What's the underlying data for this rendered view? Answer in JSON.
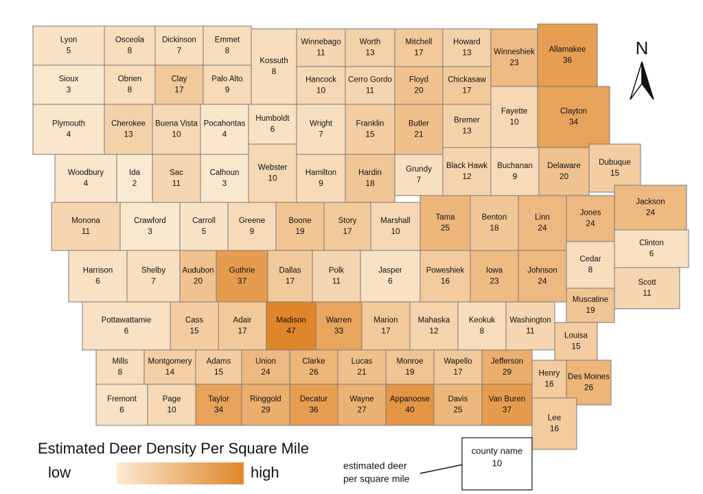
{
  "map": {
    "counties": [
      {
        "name": "Lyon",
        "value": 5
      },
      {
        "name": "Osceola",
        "value": 8
      },
      {
        "name": "Dickinson",
        "value": 7
      },
      {
        "name": "Emmet",
        "value": 8
      },
      {
        "name": "Kossuth",
        "value": 8
      },
      {
        "name": "Winnebago",
        "value": 11
      },
      {
        "name": "Worth",
        "value": 13
      },
      {
        "name": "Mitchell",
        "value": 17
      },
      {
        "name": "Howard",
        "value": 13
      },
      {
        "name": "Winneshiek",
        "value": 23
      },
      {
        "name": "Allamakee",
        "value": 36
      },
      {
        "name": "Sioux",
        "value": 3
      },
      {
        "name": "Obrien",
        "value": 8
      },
      {
        "name": "Clay",
        "value": 17
      },
      {
        "name": "Palo Alto",
        "value": 9
      },
      {
        "name": "Hancock",
        "value": 10
      },
      {
        "name": "Cerro Gordo",
        "value": 11
      },
      {
        "name": "Floyd",
        "value": 20
      },
      {
        "name": "Chickasaw",
        "value": 17
      },
      {
        "name": "Fayette",
        "value": 10
      },
      {
        "name": "Clayton",
        "value": 34
      },
      {
        "name": "Plymouth",
        "value": 4
      },
      {
        "name": "Cherokee",
        "value": 13
      },
      {
        "name": "Buena Vista",
        "value": 10
      },
      {
        "name": "Pocahontas",
        "value": 4
      },
      {
        "name": "Humboldt",
        "value": 6
      },
      {
        "name": "Wright",
        "value": 7
      },
      {
        "name": "Franklin",
        "value": 15
      },
      {
        "name": "Butler",
        "value": 21
      },
      {
        "name": "Bremer",
        "value": 13
      },
      {
        "name": "Woodbury",
        "value": 4
      },
      {
        "name": "Ida",
        "value": 2
      },
      {
        "name": "Sac",
        "value": 11
      },
      {
        "name": "Calhoun",
        "value": 3
      },
      {
        "name": "Webster",
        "value": 10
      },
      {
        "name": "Hamilton",
        "value": 9
      },
      {
        "name": "Hardin",
        "value": 18
      },
      {
        "name": "Grundy",
        "value": 7
      },
      {
        "name": "Black Hawk",
        "value": 12
      },
      {
        "name": "Buchanan",
        "value": 9
      },
      {
        "name": "Delaware",
        "value": 20
      },
      {
        "name": "Dubuque",
        "value": 15
      },
      {
        "name": "Monona",
        "value": 11
      },
      {
        "name": "Crawford",
        "value": 3
      },
      {
        "name": "Carroll",
        "value": 5
      },
      {
        "name": "Greene",
        "value": 9
      },
      {
        "name": "Boone",
        "value": 19
      },
      {
        "name": "Story",
        "value": 17
      },
      {
        "name": "Marshall",
        "value": 10
      },
      {
        "name": "Tama",
        "value": 25
      },
      {
        "name": "Benton",
        "value": 18
      },
      {
        "name": "Linn",
        "value": 24
      },
      {
        "name": "Jones",
        "value": 24
      },
      {
        "name": "Jackson",
        "value": 24
      },
      {
        "name": "Harrison",
        "value": 6
      },
      {
        "name": "Shelby",
        "value": 7
      },
      {
        "name": "Audubon",
        "value": 20
      },
      {
        "name": "Guthrie",
        "value": 37
      },
      {
        "name": "Dallas",
        "value": 17
      },
      {
        "name": "Polk",
        "value": 11
      },
      {
        "name": "Jasper",
        "value": 6
      },
      {
        "name": "Poweshiek",
        "value": 16
      },
      {
        "name": "Iowa",
        "value": 23
      },
      {
        "name": "Johnson",
        "value": 24
      },
      {
        "name": "Cedar",
        "value": 8
      },
      {
        "name": "Clinton",
        "value": 6
      },
      {
        "name": "Scott",
        "value": 11
      },
      {
        "name": "Muscatine",
        "value": 19
      },
      {
        "name": "Pottawattamie",
        "value": 6
      },
      {
        "name": "Cass",
        "value": 15
      },
      {
        "name": "Adair",
        "value": 17
      },
      {
        "name": "Madison",
        "value": 47
      },
      {
        "name": "Warren",
        "value": 33
      },
      {
        "name": "Marion",
        "value": 17
      },
      {
        "name": "Mahaska",
        "value": 12
      },
      {
        "name": "Keokuk",
        "value": 8
      },
      {
        "name": "Washington",
        "value": 11
      },
      {
        "name": "Louisa",
        "value": 15
      },
      {
        "name": "Mills",
        "value": 8
      },
      {
        "name": "Montgomery",
        "value": 14
      },
      {
        "name": "Adams",
        "value": 15
      },
      {
        "name": "Union",
        "value": 24
      },
      {
        "name": "Clarke",
        "value": 26
      },
      {
        "name": "Lucas",
        "value": 21
      },
      {
        "name": "Monroe",
        "value": 19
      },
      {
        "name": "Wapello",
        "value": 17
      },
      {
        "name": "Jefferson",
        "value": 29
      },
      {
        "name": "Henry",
        "value": 16
      },
      {
        "name": "Des Moines",
        "value": 26
      },
      {
        "name": "Fremont",
        "value": 6
      },
      {
        "name": "Page",
        "value": 10
      },
      {
        "name": "Taylor",
        "value": 34
      },
      {
        "name": "Ringgold",
        "value": 29
      },
      {
        "name": "Decatur",
        "value": 36
      },
      {
        "name": "Wayne",
        "value": 27
      },
      {
        "name": "Appanoose",
        "value": 40
      },
      {
        "name": "Davis",
        "value": 25
      },
      {
        "name": "Van Buren",
        "value": 37
      },
      {
        "name": "Lee",
        "value": 16
      }
    ]
  },
  "legend": {
    "title": "Estimated Deer Density Per Square Mile",
    "low": "low",
    "high": "high"
  },
  "key": {
    "name": "county name",
    "value": 10,
    "caption": [
      "estimated deer",
      "per square mile"
    ]
  },
  "north": "N"
}
